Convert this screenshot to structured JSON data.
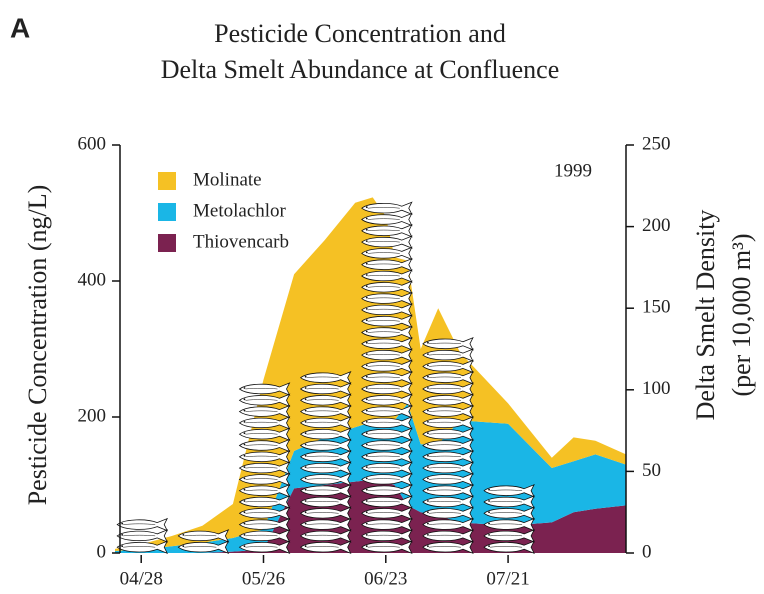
{
  "chart_data": {
    "type": "area",
    "panel_label": "A",
    "title": [
      "Pesticide Concentration and",
      "Delta Smelt Abundance at Confluence"
    ],
    "y_label": "Pesticide Concentration (ng/L)",
    "y2_label": [
      "Delta Smelt Density",
      "(per 10,000 m³)"
    ],
    "annotation": "1999",
    "stacked": true,
    "x": [
      "04/22",
      "04/28",
      "05/05",
      "05/12",
      "05/19",
      "05/26",
      "06/02",
      "06/09",
      "06/16",
      "06/20",
      "06/23",
      "06/25",
      "06/28",
      "07/01",
      "07/05",
      "07/10",
      "07/21",
      "07/31",
      "08/05",
      "08/10",
      "08/17"
    ],
    "xlim": [
      "04/22",
      "08/17"
    ],
    "xticks": [
      "04/28",
      "05/26",
      "06/23",
      "07/21"
    ],
    "ylim": [
      0,
      600
    ],
    "yticks": [
      0,
      200,
      400,
      600
    ],
    "y2lim": [
      0,
      250
    ],
    "y2ticks": [
      0,
      50,
      100,
      150,
      200,
      250
    ],
    "series": [
      {
        "name": "Molinate",
        "color": "#f5c124",
        "values": [
          3,
          8,
          15,
          25,
          50,
          220,
          260,
          290,
          330,
          330,
          300,
          240,
          210,
          140,
          200,
          100,
          30,
          15,
          35,
          20,
          15
        ]
      },
      {
        "name": "Metolachlor",
        "color": "#1ab6e6",
        "values": [
          3,
          5,
          10,
          15,
          20,
          30,
          55,
          70,
          80,
          85,
          90,
          95,
          150,
          100,
          105,
          150,
          150,
          80,
          75,
          80,
          60
        ]
      },
      {
        "name": "Thiovencarb",
        "color": "#7b2250",
        "values": [
          0,
          0,
          0,
          0,
          2,
          5,
          95,
          100,
          105,
          108,
          105,
          100,
          70,
          60,
          55,
          45,
          40,
          45,
          60,
          65,
          70
        ]
      }
    ],
    "density": {
      "type": "pictograph",
      "axis": "y2",
      "color": "#ffffff",
      "x": [
        "04/28",
        "05/12",
        "05/26",
        "06/09",
        "06/23",
        "07/07",
        "07/21"
      ],
      "values": [
        22,
        18,
        106,
        115,
        216,
        134,
        40
      ]
    }
  }
}
